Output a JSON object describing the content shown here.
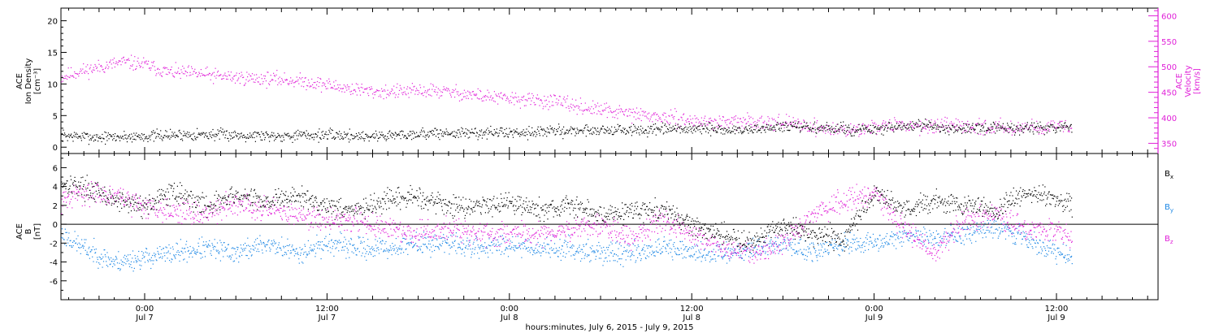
{
  "colors": {
    "black": "#000000",
    "magenta": "#e020d8",
    "blue": "#1e88e5"
  },
  "xaxis": {
    "title": "hours:minutes, July  6, 2015 - July  9, 2015",
    "ticks": [
      {
        "hour": 0,
        "time": "0:00",
        "date": "Jul 7"
      },
      {
        "hour": 12,
        "time": "12:00",
        "date": "Jul 7"
      },
      {
        "hour": 24,
        "time": "0:00",
        "date": "Jul 8"
      },
      {
        "hour": 36,
        "time": "12:00",
        "date": "Jul 8"
      },
      {
        "hour": 48,
        "time": "0:00",
        "date": "Jul 9"
      },
      {
        "hour": 60,
        "time": "12:00",
        "date": "Jul 9"
      }
    ]
  },
  "chart_data": [
    {
      "type": "scatter",
      "ylabel": [
        "ACE",
        "Ion Density",
        "[cm⁻³]"
      ],
      "ylim": [
        -1,
        22
      ],
      "yticks": [
        0,
        5,
        10,
        15,
        20
      ],
      "y2label": [
        "ACE",
        "Velocity",
        "[km/s]"
      ],
      "y2lim": [
        330,
        615
      ],
      "y2ticks": [
        350,
        400,
        450,
        500,
        550,
        600
      ],
      "series": [
        {
          "axis": "y",
          "color": "#000000",
          "x": [
            -5.5,
            -3,
            0,
            3,
            6,
            9,
            12,
            15,
            18,
            21,
            24,
            27,
            30,
            33,
            36,
            39,
            42,
            45,
            48,
            51,
            54,
            57,
            60,
            61
          ],
          "y": [
            1.9,
            1.6,
            1.8,
            2.1,
            2.0,
            1.9,
            2.0,
            1.8,
            2.2,
            2.3,
            2.4,
            2.6,
            2.8,
            2.7,
            3.0,
            2.7,
            3.3,
            3.0,
            2.8,
            3.5,
            2.9,
            3.1,
            3.0,
            3.2
          ]
        },
        {
          "axis": "y2",
          "color": "#e020d8",
          "x": [
            -5.5,
            -4.5,
            -3,
            -1.5,
            0,
            1.5,
            3,
            5,
            7,
            9,
            11,
            13,
            15,
            17,
            19,
            21,
            23,
            25,
            27,
            29,
            31,
            33,
            35,
            37,
            39,
            41,
            43,
            45,
            47,
            48,
            50,
            52,
            54,
            56,
            58,
            60,
            61
          ],
          "y": [
            480,
            490,
            500,
            510,
            505,
            490,
            488,
            482,
            478,
            476,
            470,
            460,
            452,
            452,
            454,
            448,
            440,
            436,
            432,
            420,
            412,
            405,
            398,
            392,
            392,
            394,
            388,
            378,
            376,
            385,
            386,
            384,
            383,
            382,
            382,
            383,
            380
          ]
        }
      ]
    },
    {
      "type": "scatter",
      "ylabel": [
        "ACE",
        "B",
        "[nT]"
      ],
      "ylim": [
        -8,
        7.5
      ],
      "yticks": [
        -6,
        -4,
        -2,
        0,
        2,
        4,
        6
      ],
      "series": [
        {
          "name": "Bx",
          "color": "#000000",
          "x": [
            -5.5,
            -4,
            -2,
            0,
            2,
            4,
            6,
            8,
            10,
            12,
            14,
            16,
            18,
            20,
            22,
            24,
            26,
            28,
            30,
            32,
            34,
            36,
            38,
            40,
            42,
            44,
            46,
            48,
            50,
            52,
            54,
            56,
            58,
            60,
            61
          ],
          "y": [
            4.5,
            4.0,
            2.5,
            2.0,
            3.5,
            2.0,
            3.0,
            2.5,
            3.0,
            2.0,
            1.5,
            2.5,
            3.0,
            2.0,
            2.0,
            2.5,
            1.5,
            2.0,
            1.0,
            1.5,
            1.5,
            0.0,
            -1.0,
            -2.0,
            0.0,
            -1.0,
            -1.5,
            3.5,
            1.5,
            2.5,
            2.0,
            1.5,
            3.5,
            2.5,
            2.0
          ]
        },
        {
          "name": "By",
          "color": "#1e88e5",
          "x": [
            -5.5,
            -4,
            -2,
            0,
            2,
            4,
            6,
            8,
            10,
            12,
            14,
            16,
            18,
            20,
            22,
            24,
            26,
            28,
            30,
            32,
            34,
            36,
            38,
            40,
            42,
            44,
            46,
            48,
            50,
            52,
            54,
            56,
            58,
            60,
            61
          ],
          "y": [
            -1.0,
            -2.5,
            -4.0,
            -3.5,
            -3.0,
            -2.5,
            -3.0,
            -2.0,
            -3.0,
            -2.0,
            -2.5,
            -2.5,
            -2.0,
            -2.0,
            -2.5,
            -2.0,
            -2.5,
            -2.5,
            -3.0,
            -3.0,
            -2.5,
            -3.0,
            -3.0,
            -2.5,
            -2.0,
            -3.0,
            -2.0,
            -2.0,
            -1.0,
            -1.5,
            -1.0,
            0.0,
            -1.5,
            -3.0,
            -3.5
          ]
        },
        {
          "name": "Bz",
          "color": "#e020d8",
          "x": [
            -5.5,
            -4,
            -2,
            0,
            2,
            4,
            6,
            8,
            10,
            12,
            14,
            16,
            18,
            20,
            22,
            24,
            26,
            28,
            30,
            32,
            34,
            36,
            38,
            40,
            42,
            44,
            46,
            48,
            50,
            52,
            54,
            56,
            58,
            60,
            61
          ],
          "y": [
            2.5,
            3.5,
            3.0,
            2.0,
            1.5,
            1.0,
            2.5,
            1.5,
            1.0,
            0.5,
            0.5,
            -0.5,
            -1.0,
            -0.5,
            -1.0,
            -1.0,
            -1.0,
            -0.5,
            0.0,
            -1.5,
            0.5,
            -1.0,
            -2.5,
            -3.0,
            -2.0,
            1.0,
            2.5,
            3.5,
            -0.5,
            -3.0,
            0.5,
            1.0,
            -0.5,
            -0.5,
            -1.5
          ]
        }
      ]
    }
  ]
}
